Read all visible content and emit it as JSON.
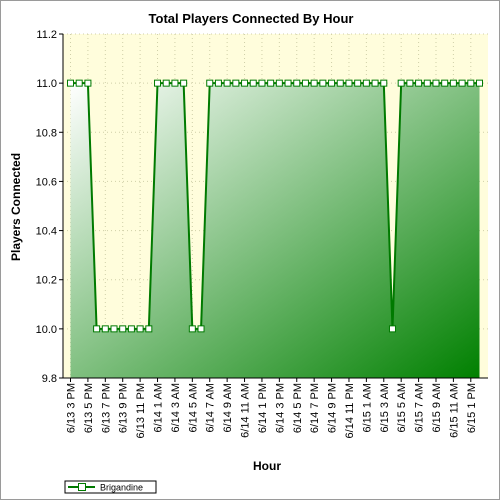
{
  "chart_data": {
    "type": "area",
    "title": "Total Players Connected By Hour",
    "xlabel": "Hour",
    "ylabel": "Players Connected",
    "ylim": [
      9.8,
      11.2
    ],
    "yticks": [
      "11.2",
      "11.0",
      "10.8",
      "10.6",
      "10.4",
      "10.2",
      "10.0",
      "9.8"
    ],
    "grid": true,
    "legend": "bottom-left",
    "colors": {
      "line": "#007a00",
      "fill_light": "#ffffff",
      "fill_dark": "#008000",
      "plot_bg": "#fffddc",
      "marker_fill": "#ffffff"
    },
    "x_labels": [
      "6/13 3 PM",
      "6/13 5 PM",
      "6/13 7 PM",
      "6/13 9 PM",
      "6/13 11 PM",
      "6/14 1 AM",
      "6/14 3 AM",
      "6/14 5 AM",
      "6/14 7 AM",
      "6/14 9 AM",
      "6/14 11 AM",
      "6/14 1 PM",
      "6/14 3 PM",
      "6/14 5 PM",
      "6/14 7 PM",
      "6/14 9 PM",
      "6/14 11 PM",
      "6/15 1 AM",
      "6/15 3 AM",
      "6/15 5 AM",
      "6/15 7 AM",
      "6/15 9 AM",
      "6/15 11 AM",
      "6/15 1 PM"
    ],
    "series": [
      {
        "name": "Brigandine",
        "values": [
          11,
          11,
          11,
          10,
          10,
          10,
          10,
          10,
          10,
          10,
          11,
          11,
          11,
          11,
          10,
          10,
          11,
          11,
          11,
          11,
          11,
          11,
          11,
          11,
          11,
          11,
          11,
          11,
          11,
          11,
          11,
          11,
          11,
          11,
          11,
          11,
          11,
          10,
          11,
          11,
          11,
          11,
          11,
          11,
          11,
          11,
          11,
          11
        ]
      }
    ]
  }
}
